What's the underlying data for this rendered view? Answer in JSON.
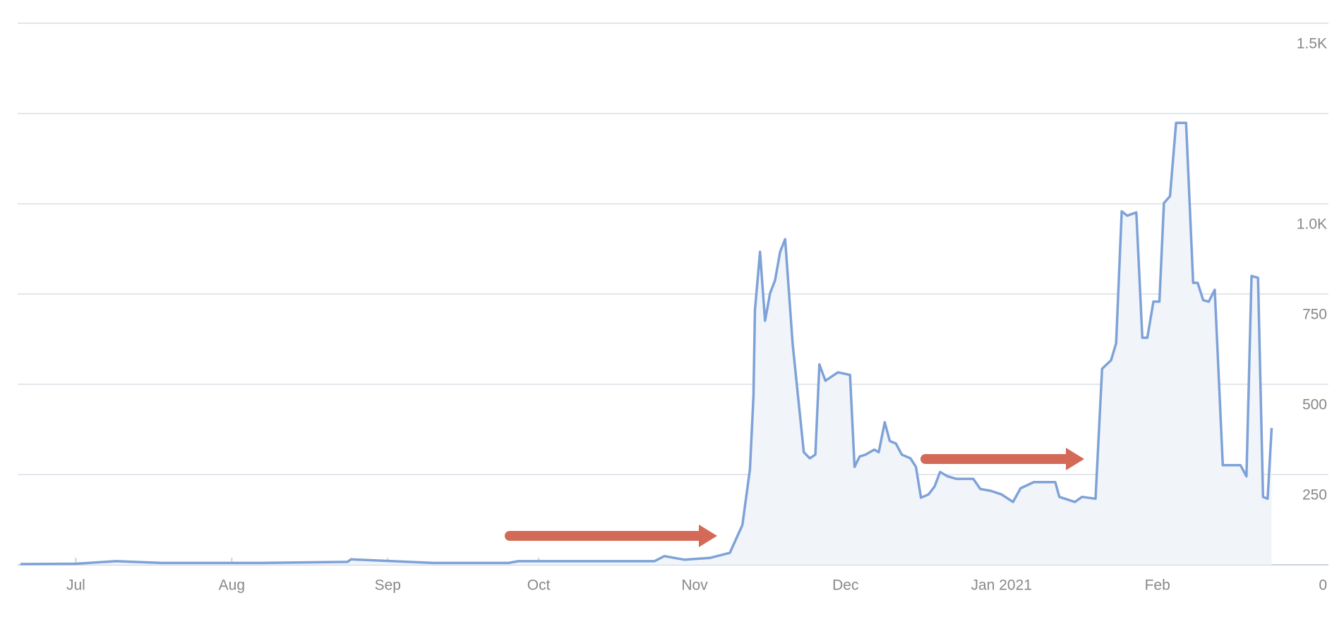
{
  "chart_data": {
    "type": "area",
    "x": [
      -11,
      0,
      8,
      17,
      37,
      54,
      54.7,
      71,
      86,
      88,
      115,
      117,
      121,
      126,
      130,
      132.5,
      134,
      134.7,
      135,
      136,
      137,
      138,
      139,
      140,
      141,
      142.5,
      144.7,
      145.9,
      147,
      147.8,
      149,
      151.5,
      153.9,
      154.8,
      155.8,
      157,
      158.7,
      159.6,
      160.8,
      161.8,
      163,
      164.2,
      165.9,
      167,
      168,
      169.5,
      170.7,
      171.8,
      173.3,
      175,
      178.4,
      179.8,
      181.8,
      184,
      186.3,
      187.8,
      190.4,
      194.7,
      195.5,
      198.6,
      200,
      202.7,
      204,
      205.8,
      206.8,
      207.9,
      209,
      210.8,
      212,
      213,
      214.2,
      215.4,
      216.3,
      217.5,
      218.7,
      220.7,
      222.1,
      223,
      224.1,
      225.2,
      226.4,
      228,
      231.5,
      232.7,
      233.7,
      235,
      236,
      236.9,
      237.7
    ],
    "values": [
      2,
      3,
      10,
      5,
      5,
      8,
      15,
      5,
      5,
      10,
      10,
      24,
      14,
      19,
      33,
      110,
      264,
      467,
      705,
      867,
      676,
      752,
      788,
      867,
      902,
      610,
      312,
      295,
      305,
      555,
      510,
      533,
      526,
      271,
      300,
      305,
      319,
      312,
      395,
      343,
      336,
      305,
      295,
      271,
      186,
      195,
      217,
      257,
      245,
      238,
      238,
      210,
      205,
      195,
      174,
      212,
      229,
      229,
      188,
      174,
      188,
      183,
      543,
      567,
      614,
      979,
      967,
      976,
      629,
      629,
      729,
      729,
      1002,
      1021,
      1224,
      1224,
      781,
      781,
      733,
      729,
      762,
      276,
      276,
      245,
      800,
      795,
      188,
      183,
      379
    ],
    "color": "#7ea2d8",
    "fill": "#f1f5fa",
    "xlim": [
      -11,
      249
    ],
    "xticks": [
      {
        "value": 0,
        "label": "Jul"
      },
      {
        "value": 31,
        "label": "Aug"
      },
      {
        "value": 62,
        "label": "Sep"
      },
      {
        "value": 92,
        "label": "Oct"
      },
      {
        "value": 123,
        "label": "Nov"
      },
      {
        "value": 153,
        "label": "Dec"
      },
      {
        "value": 184,
        "label": "Jan 2021"
      },
      {
        "value": 215,
        "label": "Feb"
      }
    ],
    "ylim": [
      0,
      1500
    ],
    "yticks": [
      0,
      250,
      500,
      750,
      {
        "value": 1000,
        "label": "1.0K"
      },
      {
        "value": 1250,
        "label": null
      },
      {
        "value": 1500,
        "label": "1.5K"
      }
    ],
    "grid": true
  }
}
